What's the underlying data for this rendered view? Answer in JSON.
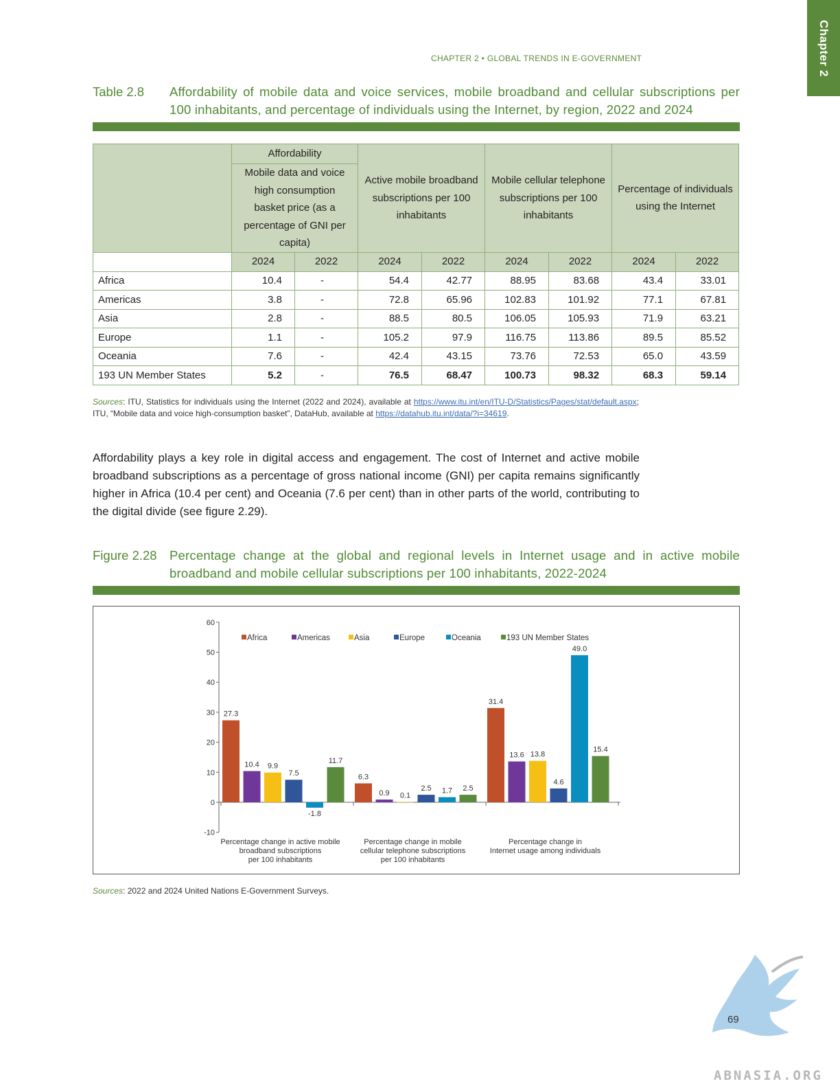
{
  "page": {
    "chapter_tab": "Chapter 2",
    "running_head": "CHAPTER 2 • GLOBAL TRENDS IN E-GOVERNMENT",
    "page_number": "69",
    "watermark_text": "ABNASIA.ORG"
  },
  "table": {
    "number": "Table 2.8",
    "title": "Affordability of mobile data and voice services, mobile broadband and cellular subscriptions per 100 inhabitants, and percentage of individuals using the Internet, by region, 2022 and 2024",
    "group_header_affordability": "Affordability",
    "col_affordability": "Mobile data and voice high consumption basket price (as a percentage of GNI per capita)",
    "col_broadband": "Active mobile broadband subscriptions per 100 inhabitants",
    "col_cellular": "Mobile cellular telephone subscriptions per 100 inhabitants",
    "col_internet": "Percentage of individuals using the Internet",
    "years": [
      "2024",
      "2022",
      "2024",
      "2022",
      "2024",
      "2022",
      "2024",
      "2022"
    ],
    "rows": [
      {
        "region": "Africa",
        "values": [
          "10.4",
          "-",
          "54.4",
          "42.77",
          "88.95",
          "83.68",
          "43.4",
          "33.01"
        ]
      },
      {
        "region": "Americas",
        "values": [
          "3.8",
          "-",
          "72.8",
          "65.96",
          "102.83",
          "101.92",
          "77.1",
          "67.81"
        ]
      },
      {
        "region": "Asia",
        "values": [
          "2.8",
          "-",
          "88.5",
          "80.5",
          "106.05",
          "105.93",
          "71.9",
          "63.21"
        ]
      },
      {
        "region": "Europe",
        "values": [
          "1.1",
          "-",
          "105.2",
          "97.9",
          "116.75",
          "113.86",
          "89.5",
          "85.52"
        ]
      },
      {
        "region": "Oceania",
        "values": [
          "7.6",
          "-",
          "42.4",
          "43.15",
          "73.76",
          "72.53",
          "65.0",
          "43.59"
        ]
      },
      {
        "region": "193 UN Member States",
        "values": [
          "5.2",
          "-",
          "76.5",
          "68.47",
          "100.73",
          "98.32",
          "68.3",
          "59.14"
        ]
      }
    ],
    "sources_label": "Sources",
    "sources_part1": ": ITU, Statistics for individuals using the Internet (2022 and 2024), available at ",
    "sources_link1": "https://www.itu.int/en/ITU-D/Statistics/Pages/stat/default.aspx",
    "sources_part2": "; ITU, “Mobile data and voice high-consumption basket”, DataHub, available at ",
    "sources_link2": "https://datahub.itu.int/data/?i=34619",
    "sources_part3": "."
  },
  "body_paragraph": "Affordability plays a key role in digital access and engagement. The cost of Internet and active mobile broadband subscriptions as a percentage of gross national income (GNI) per capita remains significantly higher in Africa (10.4 per cent) and Oceania (7.6 per cent) than in other parts of the world, contributing to the digital divide (see figure 2.29).",
  "figure": {
    "number": "Figure 2.28",
    "title": "Percentage change at the global and regional levels in Internet usage and in active mobile broadband and mobile cellular subscriptions per 100 inhabitants, 2022-2024",
    "sources_label": "Sources",
    "sources_text": ": 2022 and 2024 United Nations E-Government Surveys."
  },
  "chart_data": {
    "type": "bar",
    "categories": [
      "Percentage change in active mobile broadband subscriptions per 100 inhabitants",
      "Percentage change in mobile cellular telephone subscriptions per 100 inhabitants",
      "Percentage change in Internet usage among individuals"
    ],
    "category_lines": [
      [
        "Percentage change in active mobile",
        "broadband subscriptions",
        "per 100 inhabitants"
      ],
      [
        "Percentage change in mobile",
        "cellular telephone subscriptions",
        "per 100 inhabitants"
      ],
      [
        "Percentage change in",
        "Internet usage among individuals"
      ]
    ],
    "series": [
      {
        "name": "Africa",
        "color": "#c0502a",
        "values": [
          27.3,
          6.3,
          31.4
        ]
      },
      {
        "name": "Americas",
        "color": "#70379a",
        "values": [
          10.4,
          0.9,
          13.6
        ]
      },
      {
        "name": "Asia",
        "color": "#f6bf16",
        "values": [
          9.9,
          0.1,
          13.8
        ]
      },
      {
        "name": "Europe",
        "color": "#2f559a",
        "values": [
          7.5,
          2.5,
          4.6
        ]
      },
      {
        "name": "Oceania",
        "color": "#0a8ec0",
        "values": [
          -1.8,
          1.7,
          49.0
        ]
      },
      {
        "name": "193 UN Member States",
        "color": "#5a8a3c",
        "values": [
          11.7,
          2.5,
          15.4
        ]
      }
    ],
    "data_labels": [
      [
        "27.3",
        "6.3",
        "31.4"
      ],
      [
        "10.4",
        "0.9",
        "13.6"
      ],
      [
        "9.9",
        "0.1",
        "13.8"
      ],
      [
        "7.5",
        "2.5",
        "4.6"
      ],
      [
        "-1.8",
        "1.7",
        "49.0"
      ],
      [
        "11.7",
        "2.5",
        "15.4"
      ]
    ],
    "yticks": [
      "60",
      "50",
      "40",
      "30",
      "20",
      "10",
      "0",
      "-10"
    ],
    "ylim": [
      -10,
      60
    ],
    "legend_position": "top",
    "grid": false
  }
}
